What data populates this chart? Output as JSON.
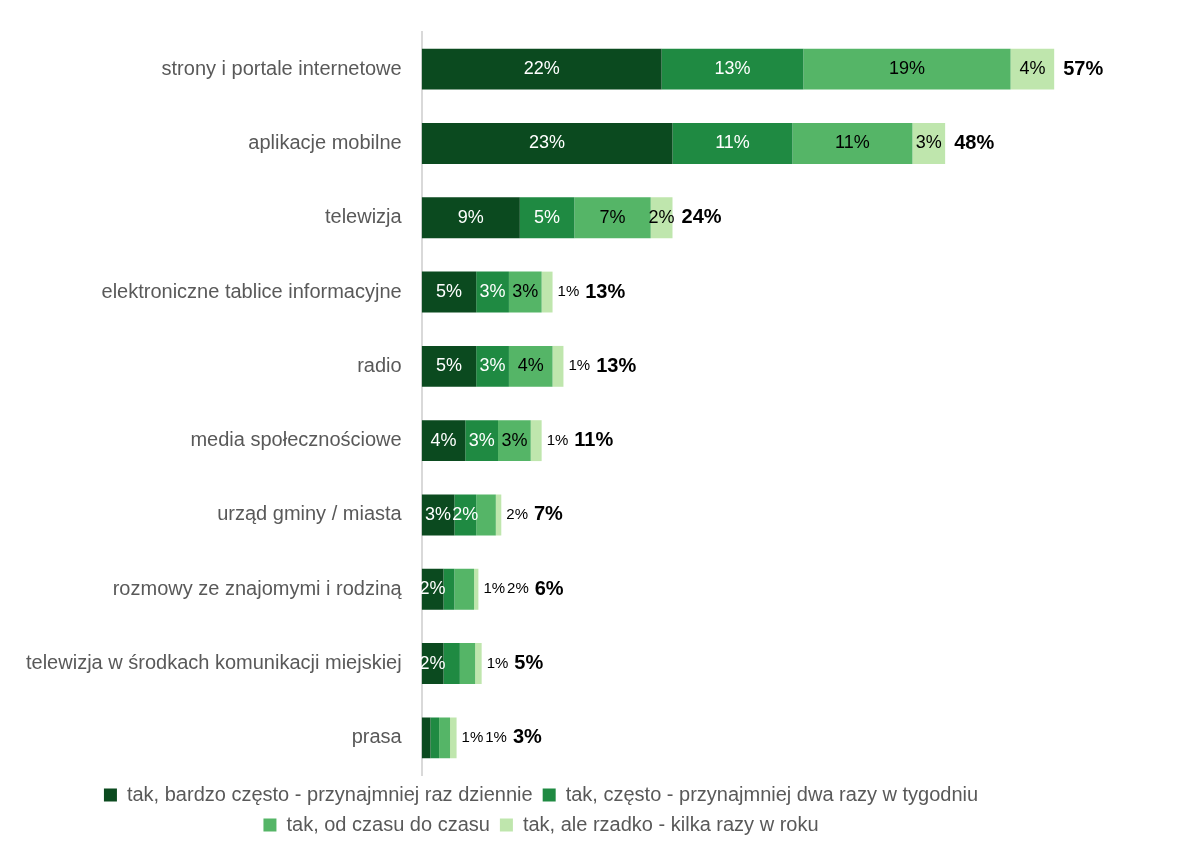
{
  "chart_data": {
    "type": "bar",
    "orientation": "horizontal",
    "stacked": true,
    "categories": [
      "strony i portale internetowe",
      "aplikacje mobilne",
      "telewizja",
      "elektroniczne tablice informacyjne",
      "radio",
      "media społecznościowe",
      "urząd gminy / miasta",
      "rozmowy ze znajomymi i rodziną",
      "telewizja w środkach komunikacji miejskiej",
      "prasa"
    ],
    "series": [
      {
        "name": "tak, bardzo często - przynajmniej raz dziennie",
        "color": "#0b4a1f",
        "values": [
          22,
          23,
          9,
          5,
          5,
          4,
          3,
          2,
          2,
          0.8
        ],
        "value_labels": [
          "22%",
          "23%",
          "9%",
          "5%",
          "5%",
          "4%",
          "3%",
          "2%",
          "2%",
          null
        ]
      },
      {
        "name": "tak, często - przynajmniej dwa razy w tygodniu",
        "color": "#1f8a42",
        "values": [
          13,
          11,
          5,
          3,
          3,
          3,
          2,
          1,
          1.5,
          0.8
        ],
        "value_labels": [
          "13%",
          "11%",
          "5%",
          "3%",
          "3%",
          "3%",
          "2%",
          "1%",
          null,
          null
        ]
      },
      {
        "name": "tak, od czasu do czasu",
        "color": "#55b567",
        "values": [
          19,
          11,
          7,
          3,
          4,
          3,
          1.8,
          1.8,
          1.4,
          1
        ],
        "value_labels": [
          "19%",
          "11%",
          "7%",
          "3%",
          "4%",
          "3%",
          "2%",
          "2%",
          null,
          "1%"
        ]
      },
      {
        "name": "tak, ale rzadko - kilka razy w roku",
        "color": "#bfe6ad",
        "values": [
          4,
          3,
          2,
          1,
          1,
          1,
          0.5,
          0.4,
          0.6,
          0.6
        ],
        "value_labels": [
          "4%",
          "3%",
          "2%",
          "1%",
          "1%",
          "1%",
          null,
          null,
          "1%",
          "1%"
        ]
      }
    ],
    "totals": [
      "57%",
      "48%",
      "24%",
      "13%",
      "13%",
      "11%",
      "7%",
      "6%",
      "5%",
      "3%"
    ],
    "legend": "bottom",
    "grid": false
  }
}
